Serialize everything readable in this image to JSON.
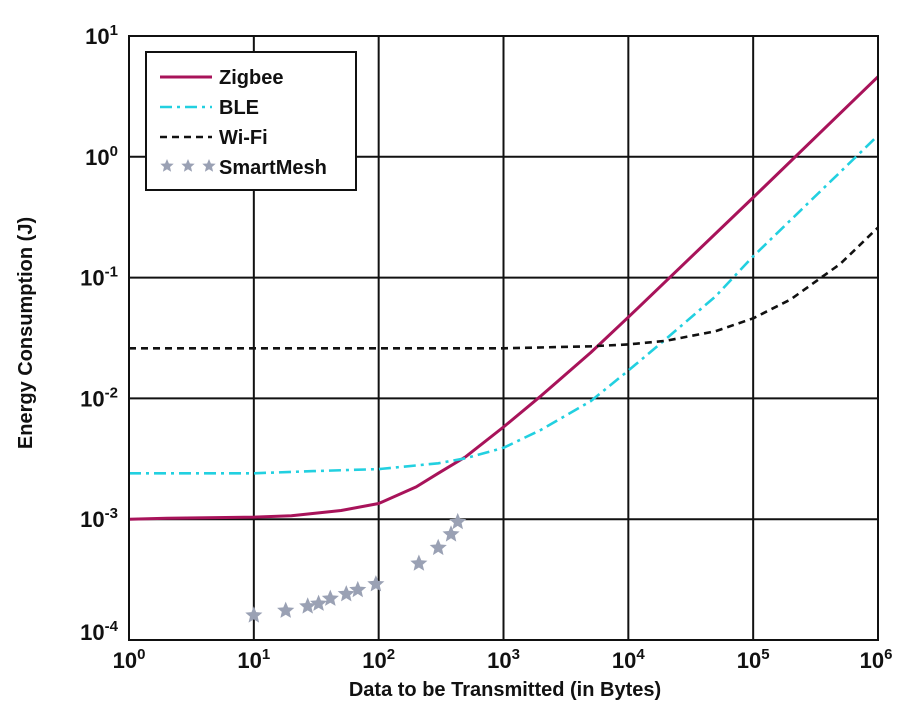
{
  "chart_data": {
    "type": "line",
    "xlabel": "Data to be Transmitted (in Bytes)",
    "ylabel": "Energy Consumption (J)",
    "x_scale": "log",
    "y_scale": "log",
    "xlim": [
      1,
      1000000
    ],
    "ylim": [
      0.0001,
      10
    ],
    "grid": true,
    "legend_position": "top-left",
    "x_ticks": [
      {
        "base": "10",
        "exp": "0",
        "value": 1
      },
      {
        "base": "10",
        "exp": "1",
        "value": 10
      },
      {
        "base": "10",
        "exp": "2",
        "value": 100
      },
      {
        "base": "10",
        "exp": "3",
        "value": 1000
      },
      {
        "base": "10",
        "exp": "4",
        "value": 10000
      },
      {
        "base": "10",
        "exp": "5",
        "value": 100000
      },
      {
        "base": "10",
        "exp": "6",
        "value": 1000000
      }
    ],
    "y_ticks": [
      {
        "base": "10",
        "exp": "1",
        "value": 10
      },
      {
        "base": "10",
        "exp": "0",
        "value": 1
      },
      {
        "base": "10",
        "exp": "-1",
        "value": 0.1
      },
      {
        "base": "10",
        "exp": "-2",
        "value": 0.01
      },
      {
        "base": "10",
        "exp": "-3",
        "value": 0.001
      },
      {
        "base": "10",
        "exp": "-4",
        "value": 0.0001
      }
    ],
    "series": [
      {
        "name": "Zigbee",
        "color": "#a8135a",
        "style": "solid",
        "x": [
          1,
          2,
          5,
          10,
          20,
          50,
          100,
          200,
          300,
          500,
          1000,
          2000,
          5000,
          10000,
          100000,
          1000000
        ],
        "y": [
          0.001,
          0.00102,
          0.00103,
          0.00104,
          0.00107,
          0.00118,
          0.00135,
          0.00185,
          0.0024,
          0.0033,
          0.0058,
          0.0105,
          0.024,
          0.047,
          0.46,
          4.6
        ]
      },
      {
        "name": "BLE",
        "color": "#22d0e0",
        "style": "dashdot",
        "x": [
          1,
          10,
          30,
          100,
          300,
          500,
          1000,
          2000,
          5000,
          10000,
          20000,
          50000,
          100000,
          200000,
          500000,
          1000000
        ],
        "y": [
          0.0024,
          0.0024,
          0.0025,
          0.0026,
          0.0029,
          0.0032,
          0.0039,
          0.0055,
          0.0095,
          0.017,
          0.031,
          0.07,
          0.15,
          0.3,
          0.75,
          1.5
        ]
      },
      {
        "name": "Wi-Fi",
        "color": "#111111",
        "style": "dashed",
        "x": [
          1,
          10,
          100,
          1000,
          5000,
          10000,
          20000,
          50000,
          100000,
          200000,
          500000,
          1000000
        ],
        "y": [
          0.026,
          0.026,
          0.026,
          0.026,
          0.027,
          0.028,
          0.03,
          0.036,
          0.046,
          0.066,
          0.13,
          0.26
        ]
      },
      {
        "name": "SmartMesh",
        "color": "#9aa1b4",
        "style": "markers",
        "marker": "star",
        "x": [
          10,
          18,
          27,
          33,
          41,
          55,
          68,
          95,
          210,
          300,
          380,
          430
        ],
        "y": [
          0.00016,
          0.000175,
          0.00019,
          0.0002,
          0.00022,
          0.00024,
          0.00026,
          0.00029,
          0.00043,
          0.00058,
          0.00075,
          0.00095
        ]
      }
    ]
  }
}
